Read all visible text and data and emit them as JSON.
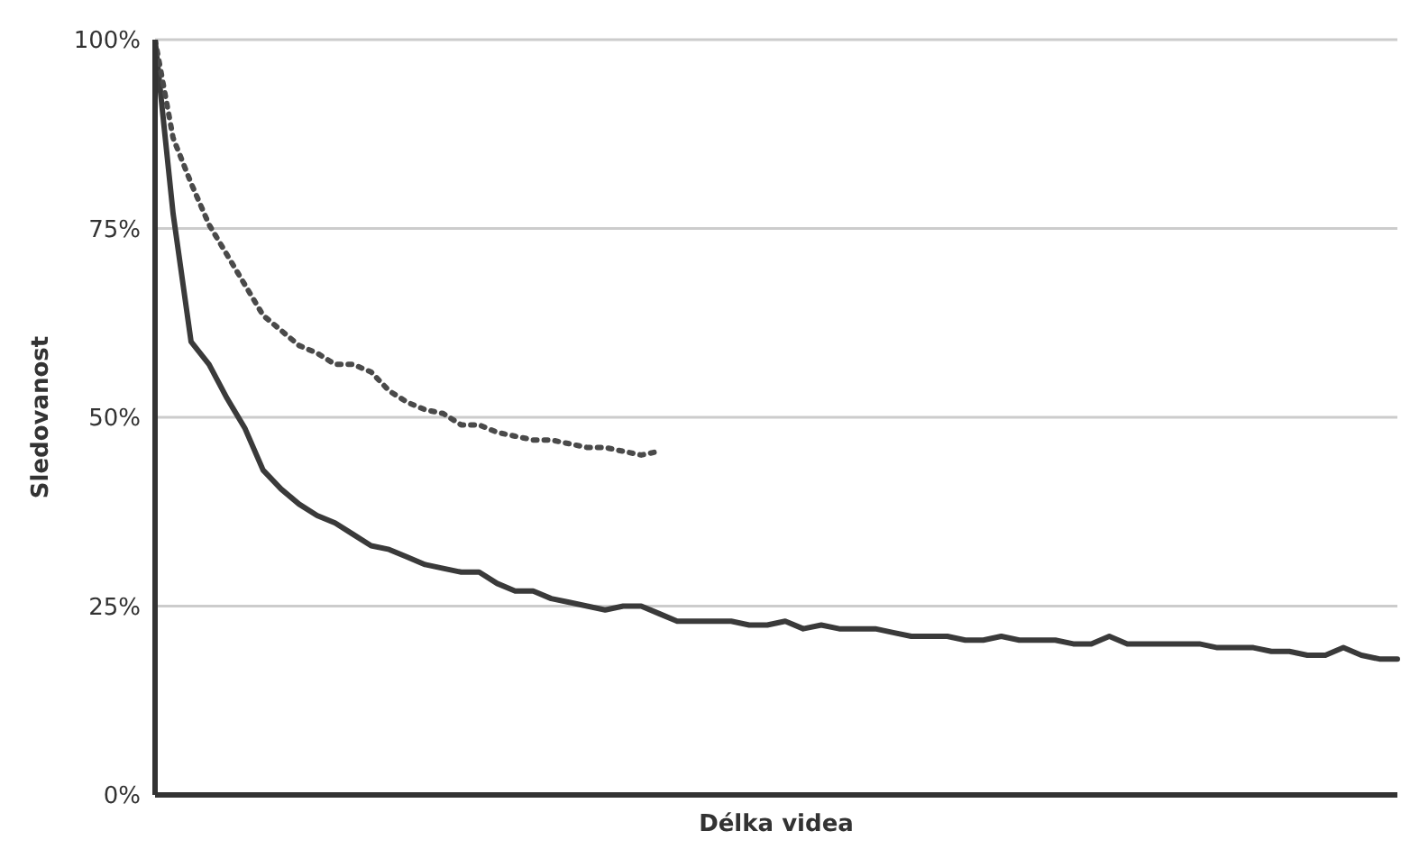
{
  "chart_data": {
    "type": "line",
    "xlabel": "Délka videa",
    "ylabel": "Sledovanost",
    "categories": [
      null,
      null,
      null,
      null,
      null,
      null,
      null,
      null,
      null,
      null,
      null,
      null,
      null,
      null,
      null,
      null,
      null,
      null,
      null,
      null,
      null,
      null,
      null,
      null,
      null,
      null,
      null,
      null,
      null,
      null,
      null,
      null,
      null,
      null,
      null,
      null,
      null,
      null,
      null,
      null,
      null,
      null,
      null,
      null,
      null,
      null,
      null,
      null,
      null,
      null,
      null,
      null,
      null,
      null,
      null,
      null,
      null,
      null,
      null,
      null,
      null,
      null,
      null,
      null,
      null,
      null,
      null,
      null,
      null,
      null
    ],
    "series": [
      {
        "color": "#3a3a3a",
        "line_style": "solid",
        "values": [
          100,
          77,
          60,
          57,
          52.5,
          48.5,
          43,
          40.5,
          38.5,
          37,
          36,
          34.5,
          33,
          32.5,
          31.5,
          30.5,
          30,
          29.5,
          29.5,
          28,
          27,
          27,
          26,
          25.5,
          25,
          24.5,
          25,
          25,
          24,
          23,
          23,
          23,
          23,
          22.5,
          22.5,
          23,
          22,
          22.5,
          22,
          22,
          22,
          21.5,
          21,
          21,
          21,
          20.5,
          20.5,
          21,
          20.5,
          20.5,
          20.5,
          20,
          20,
          21,
          20,
          20,
          20,
          20,
          20,
          19.5,
          19.5,
          19.5,
          19,
          19,
          18.5,
          18.5,
          19.5,
          18.5,
          18,
          18
        ]
      },
      {
        "color": "#4a4a4a",
        "line_style": "dotted",
        "values": [
          100,
          87,
          81,
          75.5,
          71.5,
          67.5,
          63.5,
          61.5,
          59.5,
          58.5,
          57,
          57,
          56,
          53.5,
          52,
          51,
          50.5,
          49,
          49,
          48,
          47.5,
          47,
          47,
          46.5,
          46,
          46,
          45.5,
          45,
          45.5,
          null,
          null,
          null,
          null,
          null,
          null,
          null,
          null,
          null,
          null,
          null,
          null,
          null,
          null,
          null,
          null,
          null,
          null,
          null,
          null,
          null,
          null,
          null,
          null,
          null,
          null,
          null,
          null,
          null,
          null,
          null,
          null,
          null,
          null,
          null,
          null,
          null,
          null,
          null,
          null,
          null
        ]
      }
    ],
    "ylim": [
      0,
      100
    ],
    "yticks": [
      {
        "value": 0,
        "label": "0%"
      },
      {
        "value": 25,
        "label": "25%"
      },
      {
        "value": 50,
        "label": "50%"
      },
      {
        "value": 75,
        "label": "75%"
      },
      {
        "value": 100,
        "label": "100%"
      }
    ],
    "grid": "y",
    "marker": "none",
    "legend": false
  }
}
